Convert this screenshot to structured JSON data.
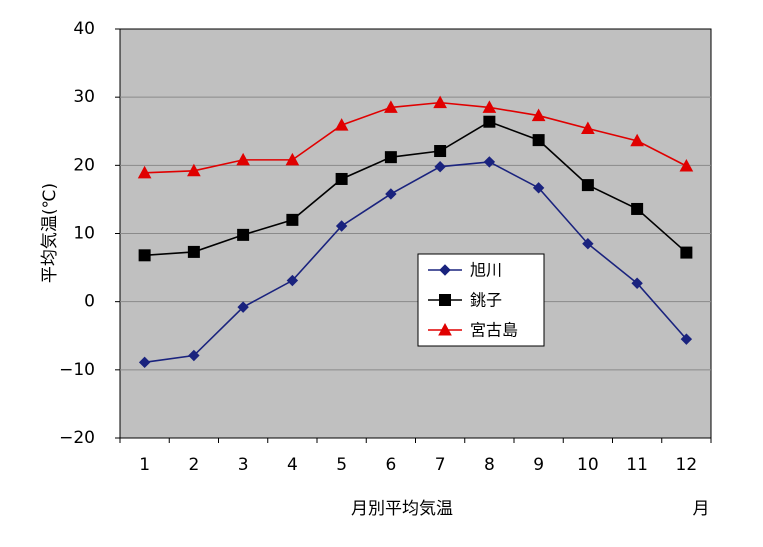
{
  "chart_data": {
    "type": "line",
    "categories": [
      "1",
      "2",
      "3",
      "4",
      "5",
      "6",
      "7",
      "8",
      "9",
      "10",
      "11",
      "12"
    ],
    "series": [
      {
        "name": "旭川",
        "color": "#1a237e",
        "marker": "diamond",
        "values": [
          -8.9,
          -7.9,
          -0.8,
          3.1,
          11.1,
          15.8,
          19.8,
          20.5,
          16.7,
          8.5,
          2.7,
          -5.5
        ]
      },
      {
        "name": "銚子",
        "color": "#000000",
        "marker": "square",
        "values": [
          6.8,
          7.3,
          9.8,
          12.0,
          18.0,
          21.2,
          22.1,
          26.4,
          23.7,
          17.1,
          13.6,
          7.2
        ]
      },
      {
        "name": "宮古島",
        "color": "#e00000",
        "marker": "triangle",
        "values": [
          18.9,
          19.2,
          20.8,
          20.8,
          25.9,
          28.5,
          29.2,
          28.5,
          27.3,
          25.4,
          23.6,
          19.9
        ]
      }
    ],
    "xlabel": "月別平均気温",
    "x_unit": "月",
    "ylabel": "平均気温(℃)",
    "ylim": [
      -20,
      40
    ],
    "yticks": [
      "40",
      "30",
      "20",
      "10",
      "0",
      "−10",
      "−20"
    ],
    "ytick_values": [
      40,
      30,
      20,
      10,
      0,
      -10,
      -20
    ],
    "grid": "horizontal",
    "legend_position": "center-right",
    "plot_background": "#c0c0c0"
  }
}
